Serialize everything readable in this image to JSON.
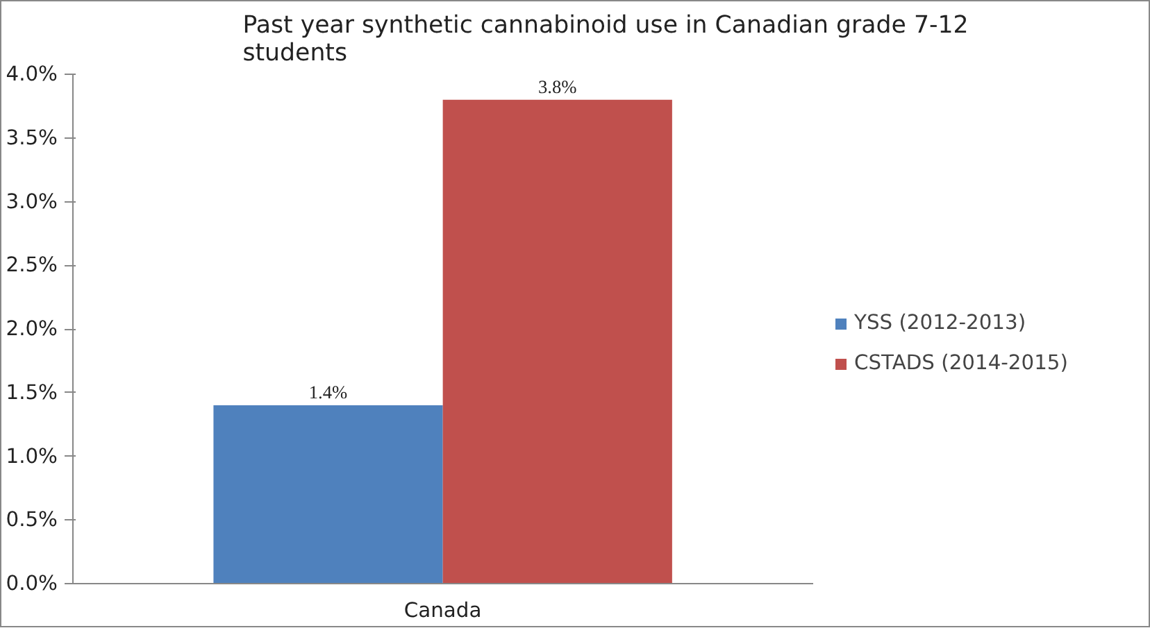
{
  "chart_data": {
    "type": "bar",
    "title": "Past year synthetic cannabinoid use in Canadian grade 7-12 students",
    "categories": [
      "Canada"
    ],
    "series": [
      {
        "name": "YSS (2012-2013)",
        "color": "#4f81bd",
        "values": [
          1.4
        ],
        "value_labels": [
          "1.4%"
        ]
      },
      {
        "name": "CSTADS (2014-2015)",
        "color": "#c0504d",
        "values": [
          3.8
        ],
        "value_labels": [
          "3.8%"
        ]
      }
    ],
    "ylim": [
      0,
      4
    ],
    "yticks": [
      {
        "value": 0,
        "label": "0.0%"
      },
      {
        "value": 0.5,
        "label": "0.5%"
      },
      {
        "value": 1,
        "label": "1.0%"
      },
      {
        "value": 1.5,
        "label": "1.5%"
      },
      {
        "value": 2,
        "label": "2.0%"
      },
      {
        "value": 2.5,
        "label": "2.5%"
      },
      {
        "value": 3,
        "label": "3.0%"
      },
      {
        "value": 3.5,
        "label": "3.5%"
      },
      {
        "value": 4,
        "label": "4.0%"
      }
    ],
    "grid": false,
    "legend": "right"
  }
}
